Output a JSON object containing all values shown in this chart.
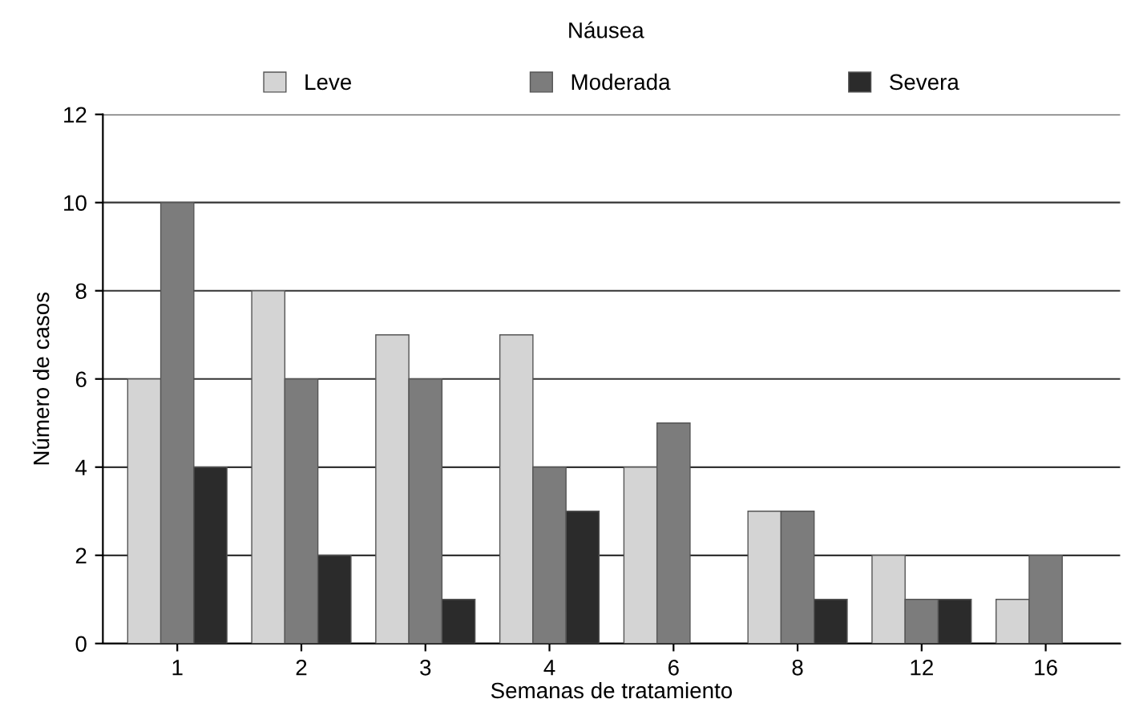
{
  "chart_data": {
    "type": "bar",
    "title": "Náusea",
    "xlabel": "Semanas de tratamiento",
    "ylabel": "Número de casos",
    "categories": [
      "1",
      "2",
      "3",
      "4",
      "6",
      "8",
      "12",
      "16"
    ],
    "series": [
      {
        "name": "Leve",
        "color": "#d4d4d4",
        "values": [
          6,
          8,
          7,
          7,
          4,
          3,
          2,
          1
        ]
      },
      {
        "name": "Moderada",
        "color": "#7c7c7c",
        "values": [
          10,
          6,
          6,
          4,
          5,
          3,
          1,
          2
        ]
      },
      {
        "name": "Severa",
        "color": "#2b2b2b",
        "values": [
          4,
          2,
          1,
          3,
          null,
          1,
          1,
          null
        ]
      }
    ],
    "ylim": [
      0,
      12
    ],
    "yticks": [
      0,
      2,
      4,
      6,
      8,
      10,
      12
    ],
    "grid": "y",
    "legend": "top"
  }
}
